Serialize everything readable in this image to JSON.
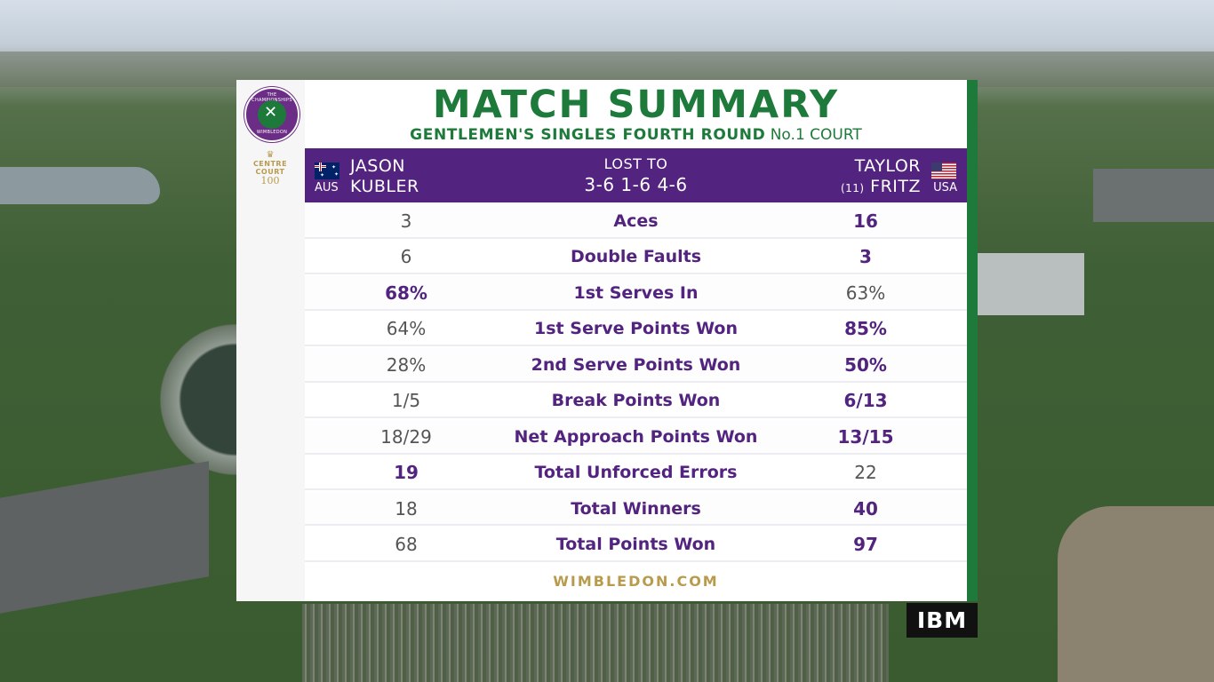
{
  "branding": {
    "logo_top_text": "THE CHAMPIONSHIPS",
    "logo_bottom_text": "WIMBLEDON",
    "centre_court_line1": "CENTRE",
    "centre_court_line2": "COURT",
    "centre_court_number": "100",
    "sponsor": "IBM",
    "website": "WIMBLEDON.COM"
  },
  "header": {
    "title": "MATCH SUMMARY",
    "event": "GENTLEMEN'S SINGLES FOURTH ROUND",
    "court": "No.1 COURT"
  },
  "match": {
    "player_left": {
      "first_name": "JASON",
      "last_name": "KUBLER",
      "country": "AUS",
      "seed": ""
    },
    "player_right": {
      "first_name": "TAYLOR",
      "last_name": "FRITZ",
      "country": "USA",
      "seed": "(11)"
    },
    "result_label": "LOST TO",
    "score": "3-6 1-6 4-6"
  },
  "stats": [
    {
      "label": "Aces",
      "left": "3",
      "right": "16",
      "leader": "right"
    },
    {
      "label": "Double Faults",
      "left": "6",
      "right": "3",
      "leader": "right"
    },
    {
      "label": "1st Serves In",
      "left": "68%",
      "right": "63%",
      "leader": "left"
    },
    {
      "label": "1st Serve Points Won",
      "left": "64%",
      "right": "85%",
      "leader": "right"
    },
    {
      "label": "2nd Serve Points Won",
      "left": "28%",
      "right": "50%",
      "leader": "right"
    },
    {
      "label": "Break Points Won",
      "left": "1/5",
      "right": "6/13",
      "leader": "right"
    },
    {
      "label": "Net Approach Points Won",
      "left": "18/29",
      "right": "13/15",
      "leader": "right"
    },
    {
      "label": "Total Unforced Errors",
      "left": "19",
      "right": "22",
      "leader": "left"
    },
    {
      "label": "Total Winners",
      "left": "18",
      "right": "40",
      "leader": "right"
    },
    {
      "label": "Total Points Won",
      "left": "68",
      "right": "97",
      "leader": "right"
    }
  ],
  "colors": {
    "purple": "#53247f",
    "green": "#1d7a3a",
    "gold": "#b89b4d"
  }
}
